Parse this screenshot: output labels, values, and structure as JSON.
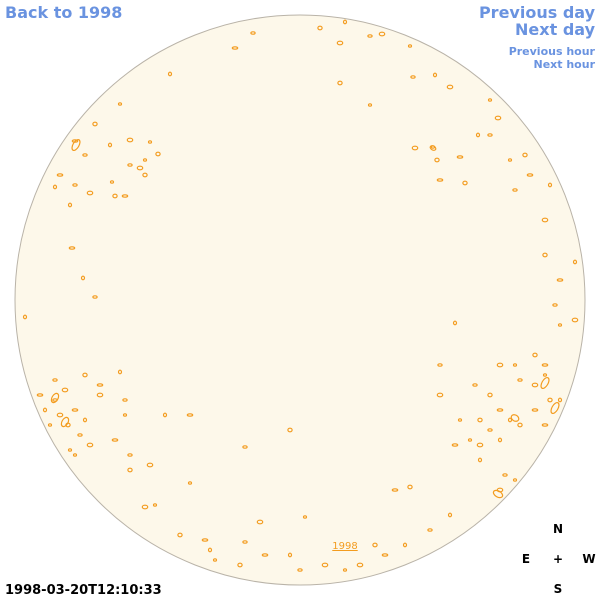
{
  "nav": {
    "back_label": "Back to 1998",
    "prev_day_label": "Previous day",
    "next_day_label": "Next day",
    "prev_hour_label": "Previous hour",
    "next_hour_label": "Next hour"
  },
  "disk": {
    "year_label": "1998",
    "fill_color": "#fdf8ea",
    "edge_color": "#b9b3a8",
    "contour_color": "#f39c1f"
  },
  "compass": {
    "n": "N",
    "e": "E",
    "center": "+",
    "w": "W",
    "s": "S"
  },
  "timestamp": "1998-03-20T12:10:33"
}
